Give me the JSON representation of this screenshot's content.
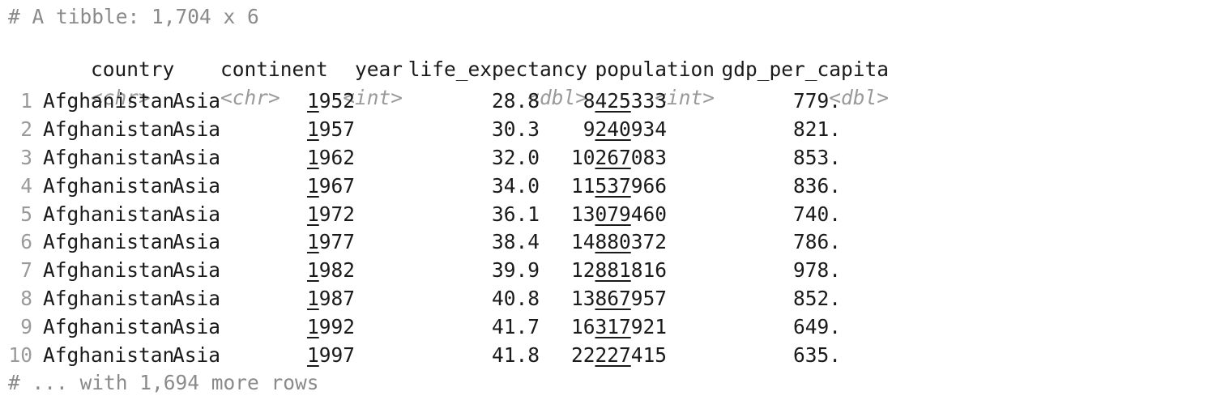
{
  "header": "# A tibble: 1,704 x 6",
  "columns": [
    "country",
    "continent",
    "year",
    "life_expectancy",
    "population",
    "gdp_per_capita"
  ],
  "types": [
    "<chr>",
    "<chr>",
    "<int>",
    "<dbl>",
    "<int>",
    "<dbl>"
  ],
  "rows": [
    {
      "n": "1",
      "country": "Afghanistan",
      "continent": "Asia",
      "year": "1952",
      "life_expectancy": "28.8",
      "population": "8425333",
      "gdp_per_capita": "779."
    },
    {
      "n": "2",
      "country": "Afghanistan",
      "continent": "Asia",
      "year": "1957",
      "life_expectancy": "30.3",
      "population": "9240934",
      "gdp_per_capita": "821."
    },
    {
      "n": "3",
      "country": "Afghanistan",
      "continent": "Asia",
      "year": "1962",
      "life_expectancy": "32.0",
      "population": "10267083",
      "gdp_per_capita": "853."
    },
    {
      "n": "4",
      "country": "Afghanistan",
      "continent": "Asia",
      "year": "1967",
      "life_expectancy": "34.0",
      "population": "11537966",
      "gdp_per_capita": "836."
    },
    {
      "n": "5",
      "country": "Afghanistan",
      "continent": "Asia",
      "year": "1972",
      "life_expectancy": "36.1",
      "population": "13079460",
      "gdp_per_capita": "740."
    },
    {
      "n": "6",
      "country": "Afghanistan",
      "continent": "Asia",
      "year": "1977",
      "life_expectancy": "38.4",
      "population": "14880372",
      "gdp_per_capita": "786."
    },
    {
      "n": "7",
      "country": "Afghanistan",
      "continent": "Asia",
      "year": "1982",
      "life_expectancy": "39.9",
      "population": "12881816",
      "gdp_per_capita": "978."
    },
    {
      "n": "8",
      "country": "Afghanistan",
      "continent": "Asia",
      "year": "1987",
      "life_expectancy": "40.8",
      "population": "13867957",
      "gdp_per_capita": "852."
    },
    {
      "n": "9",
      "country": "Afghanistan",
      "continent": "Asia",
      "year": "1992",
      "life_expectancy": "41.7",
      "population": "16317921",
      "gdp_per_capita": "649."
    },
    {
      "n": "10",
      "country": "Afghanistan",
      "continent": "Asia",
      "year": "1997",
      "life_expectancy": "41.8",
      "population": "22227415",
      "gdp_per_capita": "635."
    }
  ],
  "footer": "# ... with 1,694 more rows"
}
